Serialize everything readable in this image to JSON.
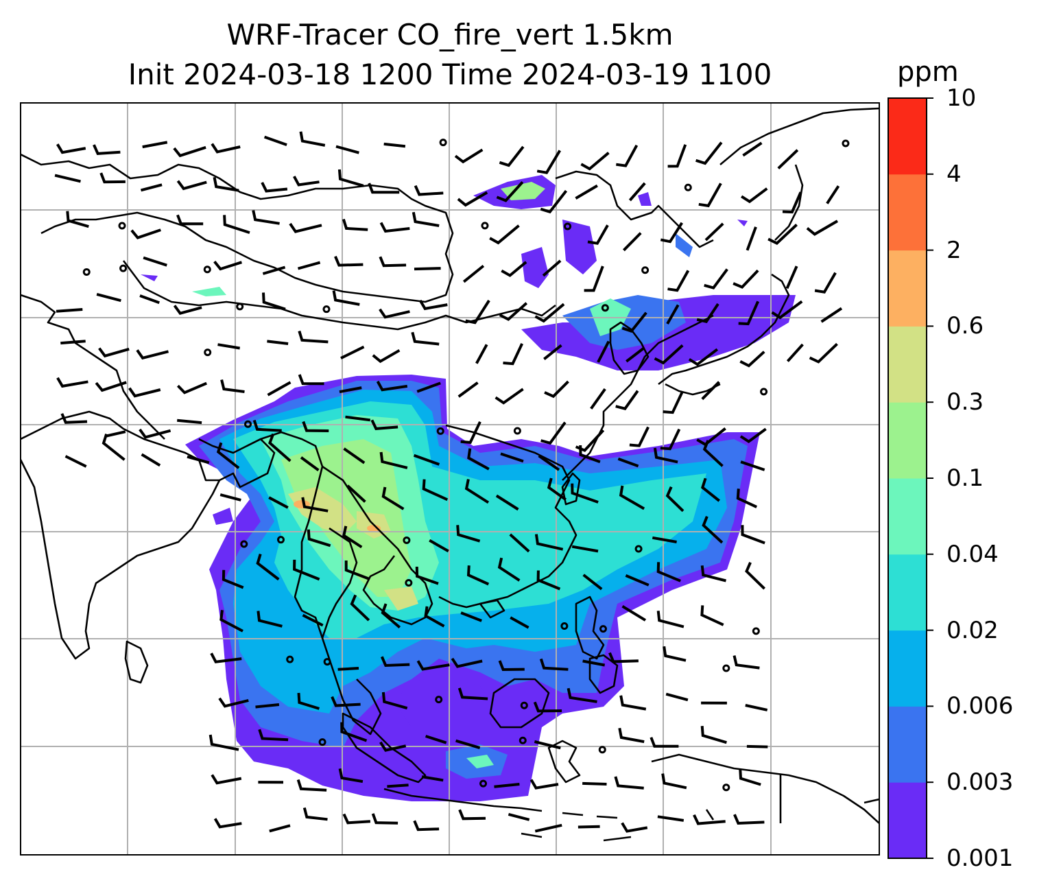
{
  "title_line1": "WRF-Tracer CO_fire_vert 1.5km",
  "title_line2": "Init 2024-03-18 1200 Time 2024-03-19 1100",
  "colorbar": {
    "unit": "ppm",
    "ticks": [
      "0.001",
      "0.003",
      "0.006",
      "0.02",
      "0.04",
      "0.1",
      "0.3",
      "0.6",
      "2",
      "4",
      "10"
    ],
    "colors": [
      "#6a2cf6",
      "#3a74f0",
      "#06b0ec",
      "#2ddfd4",
      "#6cf6bc",
      "#9cf28e",
      "#d2e185",
      "#fdb061",
      "#fd7139",
      "#fb2a18"
    ]
  },
  "map": {
    "region": "South and Southeast Asia",
    "layers": [
      "coastlines",
      "country borders",
      "gridlines",
      "CO fire tracer shading",
      "wind barbs"
    ],
    "gridline_color": "#b0b0b0"
  }
}
